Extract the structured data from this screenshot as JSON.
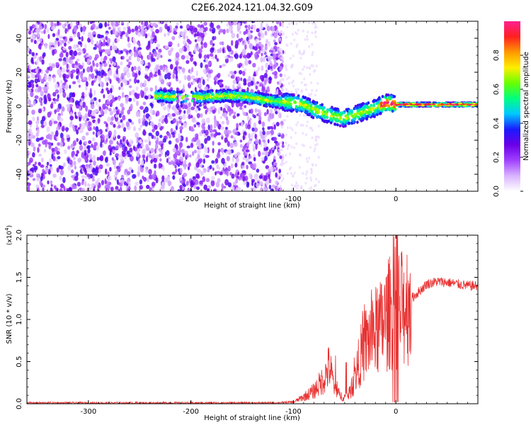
{
  "title": "C2E6.2024.121.04.32.G09",
  "chart_data": [
    {
      "type": "heatmap",
      "xlabel": "Height of straight line (km)",
      "ylabel": "Frequency (Hz)",
      "xlim": [
        -360,
        80
      ],
      "ylim": [
        -50,
        50
      ],
      "x_ticks": [
        "-300",
        "-200",
        "-100",
        "0"
      ],
      "y_ticks": [
        "40",
        "20",
        "0",
        "-20",
        "-40"
      ],
      "colorbar": {
        "label": "Normalized spectral amplitude",
        "ticks": [
          "0.0",
          "0.2",
          "0.4",
          "0.6",
          "0.8"
        ],
        "range": [
          0,
          1
        ],
        "colormap": [
          "#ffffff",
          "#d9b3ff",
          "#a040ff",
          "#6a00e8",
          "#1a1aff",
          "#00c8ff",
          "#00ff80",
          "#66ff00",
          "#ffee00",
          "#ff9900",
          "#ff2020",
          "#ff2090"
        ]
      },
      "ridge": {
        "x": [
          -230,
          -200,
          -170,
          -150,
          -120,
          -100,
          -90,
          -80,
          -70,
          -60,
          -50,
          -40,
          -30,
          -20,
          -10,
          0,
          20,
          50,
          80
        ],
        "y": [
          6,
          5,
          6,
          6,
          3,
          2,
          1,
          -2,
          -4,
          -6,
          -7,
          -5,
          -3,
          -1,
          2,
          1,
          1,
          1,
          1
        ]
      }
    },
    {
      "type": "line",
      "xlabel": "Height of straight line (km)",
      "ylabel": "SNR (10 * v/v)",
      "y_multiplier": "(x10",
      "y_multiplier_exp": "4",
      "y_multiplier_close": ")",
      "xlim": [
        -360,
        80
      ],
      "ylim": [
        0,
        2.0
      ],
      "x_ticks": [
        "-300",
        "-200",
        "-100",
        "0"
      ],
      "y_ticks": [
        "0.0",
        "0.5",
        "1.0",
        "1.5",
        "2.0"
      ],
      "series": [
        {
          "color": "#e83030",
          "x": [
            -360,
            -300,
            -200,
            -120,
            -100,
            -90,
            -80,
            -70,
            -65,
            -60,
            -55,
            -50,
            -45,
            -40,
            -35,
            -30,
            -25,
            -20,
            -15,
            -10,
            -5,
            0,
            5,
            10,
            20,
            30,
            40,
            50,
            60,
            70,
            80
          ],
          "y": [
            0.01,
            0.01,
            0.01,
            0.01,
            0.02,
            0.08,
            0.15,
            0.3,
            0.45,
            0.2,
            0.1,
            0.08,
            0.12,
            0.3,
            0.55,
            0.7,
            0.8,
            0.85,
            0.9,
            1.0,
            1.1,
            1.15,
            1.1,
            1.2,
            1.3,
            1.42,
            1.45,
            1.44,
            1.42,
            1.4,
            1.4
          ]
        }
      ]
    }
  ]
}
